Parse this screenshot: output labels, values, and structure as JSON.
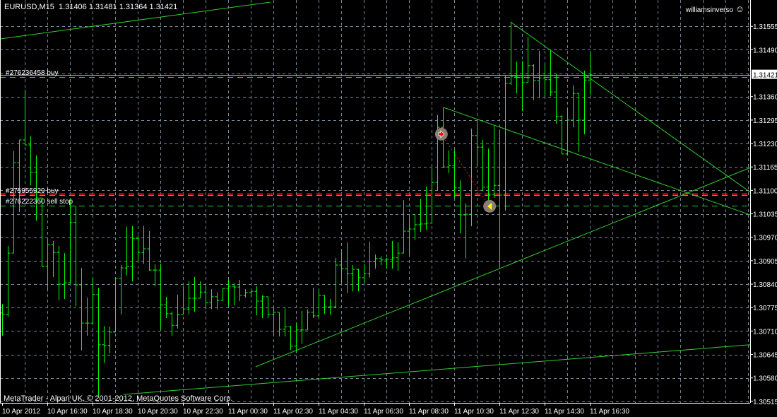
{
  "header": {
    "symbol": "EURUSD,M15",
    "open": "1.31406",
    "high": "1.31481",
    "low": "1.31364",
    "close": "1.31421"
  },
  "user": {
    "name": "williamsinverso",
    "icon": "smiley-icon"
  },
  "footer": {
    "copyright": "MetaTrader - Alpari UK, © 2001-2012, MetaQuotes Software Corp."
  },
  "colors": {
    "background": "#000000",
    "bars": "#00ff00",
    "trendlines": "#32cd32",
    "grid": "#778899",
    "sell_line": "#ff0000",
    "buy_line": "#32cd32",
    "axis": "#ffffff"
  },
  "chart_data": {
    "type": "ohlc",
    "timeframe": "M15",
    "x_start": "2012-04-10 14:30",
    "interval_minutes": 15,
    "ylim": [
      1.30505,
      1.31628
    ],
    "grid": true,
    "current_price": "1.31421",
    "y_ticks": [
      "1.31555",
      "1.31490",
      "1.31360",
      "1.31295",
      "1.31230",
      "1.31165",
      "1.31100",
      "1.31035",
      "1.30970",
      "1.30905",
      "1.30840",
      "1.30775",
      "1.30710",
      "1.30645",
      "1.30580",
      "1.30515"
    ],
    "x_ticks": [
      "10 Apr 2012",
      "10 Apr 16:30",
      "10 Apr 18:30",
      "10 Apr 20:30",
      "10 Apr 22:30",
      "11 Apr 00:30",
      "11 Apr 02:30",
      "11 Apr 04:30",
      "11 Apr 06:30",
      "11 Apr 08:30",
      "11 Apr 10:30",
      "11 Apr 12:30",
      "11 Apr 14:30",
      "11 Apr 16:30"
    ],
    "bars": [
      [
        1.3076,
        1.30785,
        1.30697,
        1.30756
      ],
      [
        1.30756,
        1.30946,
        1.3075,
        1.30926
      ],
      [
        1.30926,
        1.31209,
        1.30926,
        1.31177
      ],
      [
        1.31177,
        1.3124,
        1.3104,
        1.3124
      ],
      [
        1.3124,
        1.31379,
        1.31226,
        1.31226
      ],
      [
        1.31226,
        1.3125,
        1.31114,
        1.3115
      ],
      [
        1.3115,
        1.31197,
        1.31016,
        1.31079
      ],
      [
        1.31079,
        1.31079,
        1.30887,
        1.30889
      ],
      [
        1.30889,
        1.30966,
        1.3082,
        1.3095
      ],
      [
        1.3095,
        1.3096,
        1.3086,
        1.30928
      ],
      [
        1.30928,
        1.30946,
        1.30795,
        1.3084
      ],
      [
        1.3084,
        1.30926,
        1.30799,
        1.30844
      ],
      [
        1.30844,
        1.31079,
        1.30844,
        1.31011
      ],
      [
        1.31011,
        1.31058,
        1.30779,
        1.30838
      ],
      [
        1.30838,
        1.30885,
        1.30656,
        1.30732
      ],
      [
        1.30732,
        1.30803,
        1.30697,
        1.30732
      ],
      [
        1.30732,
        1.30858,
        1.30732,
        1.30811
      ],
      [
        1.30811,
        1.3083,
        1.3053,
        1.30672
      ],
      [
        1.30672,
        1.30724,
        1.30621,
        1.3067
      ],
      [
        1.3067,
        1.30722,
        1.30648,
        1.30707
      ],
      [
        1.30707,
        1.30858,
        1.30707,
        1.30856
      ],
      [
        1.30856,
        1.30893,
        1.30756,
        1.30885
      ],
      [
        1.30885,
        1.30999,
        1.30864,
        1.30889
      ],
      [
        1.30889,
        1.31001,
        1.30848,
        1.30967
      ],
      [
        1.30967,
        1.30975,
        1.30903,
        1.30928
      ],
      [
        1.30928,
        1.31001,
        1.30897,
        1.30938
      ],
      [
        1.30938,
        1.30987,
        1.30877,
        1.30879
      ],
      [
        1.30879,
        1.30895,
        1.30834,
        1.30879
      ],
      [
        1.30879,
        1.30897,
        1.30715,
        1.30783
      ],
      [
        1.30783,
        1.30805,
        1.30746,
        1.30758
      ],
      [
        1.30758,
        1.30764,
        1.30697,
        1.30726
      ],
      [
        1.30726,
        1.30811,
        1.30717,
        1.30756
      ],
      [
        1.30756,
        1.30834,
        1.30756,
        1.30771
      ],
      [
        1.30771,
        1.30848,
        1.30756,
        1.30801
      ],
      [
        1.30801,
        1.3086,
        1.30764,
        1.30801
      ],
      [
        1.30801,
        1.30848,
        1.30801,
        1.30818
      ],
      [
        1.30818,
        1.30836,
        1.3077,
        1.30789
      ],
      [
        1.30789,
        1.30826,
        1.30771,
        1.30805
      ],
      [
        1.30805,
        1.30817,
        1.3077,
        1.30795
      ],
      [
        1.30795,
        1.30828,
        1.30795,
        1.30828
      ],
      [
        1.30828,
        1.30852,
        1.30781,
        1.30834
      ],
      [
        1.30834,
        1.30842,
        1.30781,
        1.30832
      ],
      [
        1.30832,
        1.30852,
        1.30793,
        1.30809
      ],
      [
        1.30809,
        1.30826,
        1.30803,
        1.30817
      ],
      [
        1.30817,
        1.3082,
        1.30803,
        1.3082
      ],
      [
        1.3082,
        1.30834,
        1.30754,
        1.30793
      ],
      [
        1.30793,
        1.30809,
        1.30746,
        1.30805
      ],
      [
        1.30805,
        1.30805,
        1.30746,
        1.30756
      ],
      [
        1.30756,
        1.30777,
        1.30695,
        1.30762
      ],
      [
        1.30762,
        1.30762,
        1.30695,
        1.30715
      ],
      [
        1.30715,
        1.30773,
        1.30695,
        1.30722
      ],
      [
        1.30722,
        1.30724,
        1.30658,
        1.30668
      ],
      [
        1.30668,
        1.30732,
        1.30652,
        1.30713
      ],
      [
        1.30713,
        1.30766,
        1.30675,
        1.30713
      ],
      [
        1.30713,
        1.3077,
        1.30713,
        1.30762
      ],
      [
        1.30762,
        1.3083,
        1.30746,
        1.30752
      ],
      [
        1.30752,
        1.30822,
        1.30748,
        1.30809
      ],
      [
        1.30809,
        1.30809,
        1.30758,
        1.30777
      ],
      [
        1.30777,
        1.30799,
        1.30754,
        1.30777
      ],
      [
        1.30777,
        1.30913,
        1.30773,
        1.30893
      ],
      [
        1.30893,
        1.30932,
        1.30844,
        1.30883
      ],
      [
        1.30883,
        1.30956,
        1.30815,
        1.30869
      ],
      [
        1.30869,
        1.30893,
        1.3082,
        1.30881
      ],
      [
        1.30881,
        1.30883,
        1.3082,
        1.30858
      ],
      [
        1.30858,
        1.30895,
        1.30844,
        1.30869
      ],
      [
        1.30869,
        1.30958,
        1.30858,
        1.30903
      ],
      [
        1.30903,
        1.30922,
        1.30883,
        1.30911
      ],
      [
        1.30911,
        1.30917,
        1.30893,
        1.30907
      ],
      [
        1.30907,
        1.30913,
        1.30883,
        1.30909
      ],
      [
        1.30909,
        1.3096,
        1.30883,
        1.30913
      ],
      [
        1.30913,
        1.30956,
        1.30877,
        1.30926
      ],
      [
        1.30926,
        1.31073,
        1.30926,
        1.30987
      ],
      [
        1.30987,
        1.31034,
        1.30922,
        1.30993
      ],
      [
        1.30993,
        1.31034,
        1.30962,
        1.31005
      ],
      [
        1.31005,
        1.31077,
        1.30985,
        1.31007
      ],
      [
        1.31007,
        1.31111,
        1.30991,
        1.31009
      ],
      [
        1.31009,
        1.31162,
        1.31009,
        1.31122
      ],
      [
        1.31122,
        1.31309,
        1.31099,
        1.31275
      ],
      [
        1.31275,
        1.3133,
        1.31162,
        1.31165
      ],
      [
        1.31165,
        1.31211,
        1.31148,
        1.31169
      ],
      [
        1.31169,
        1.31212,
        1.31079,
        1.31107
      ],
      [
        1.31107,
        1.31128,
        1.30981,
        1.31032
      ],
      [
        1.31032,
        1.31064,
        1.30911,
        1.31034
      ],
      [
        1.31034,
        1.31271,
        1.31001,
        1.31252
      ],
      [
        1.31252,
        1.31295,
        1.31167,
        1.3122
      ],
      [
        1.3122,
        1.3124,
        1.31099,
        1.31109
      ],
      [
        1.31109,
        1.31216,
        1.3106,
        1.31089
      ],
      [
        1.31089,
        1.31279,
        1.31079,
        1.31114
      ],
      [
        1.31114,
        1.31269,
        1.30887,
        1.31087
      ],
      [
        1.31087,
        1.31418,
        1.31044,
        1.31397
      ],
      [
        1.31397,
        1.31567,
        1.31393,
        1.31416
      ],
      [
        1.31416,
        1.31457,
        1.31369,
        1.31414
      ],
      [
        1.31414,
        1.31459,
        1.3132,
        1.31399
      ],
      [
        1.31399,
        1.31526,
        1.31399,
        1.31446
      ],
      [
        1.31446,
        1.3145,
        1.3135,
        1.31405
      ],
      [
        1.31405,
        1.31487,
        1.31356,
        1.31412
      ],
      [
        1.31412,
        1.31448,
        1.31361,
        1.31407
      ],
      [
        1.31407,
        1.31489,
        1.31361,
        1.31373
      ],
      [
        1.31373,
        1.31424,
        1.31285,
        1.31305
      ],
      [
        1.31305,
        1.31309,
        1.31201,
        1.31201
      ],
      [
        1.31201,
        1.3133,
        1.31197,
        1.31295
      ],
      [
        1.31295,
        1.31391,
        1.31275,
        1.31369
      ],
      [
        1.31369,
        1.31369,
        1.31207,
        1.31295
      ],
      [
        1.31295,
        1.31432,
        1.31256,
        1.31406
      ],
      [
        1.31406,
        1.31481,
        1.31364,
        1.31421
      ]
    ],
    "trendlines": [
      {
        "from": {
          "time": "2012-04-10 14:24",
          "price": 1.3152
        },
        "to": {
          "time": "2012-04-11 02:22",
          "price": 1.31622
        }
      },
      {
        "from": {
          "time": "2012-04-10 19:52",
          "price": 1.30534
        },
        "to": {
          "time": "2012-04-11 23:36",
          "price": 1.30672
        }
      },
      {
        "from": {
          "time": "2012-04-11 01:43",
          "price": 1.30611
        },
        "to": {
          "time": "2012-04-11 23:36",
          "price": 1.31163
        }
      },
      {
        "from": {
          "time": "2012-04-11 10:02",
          "price": 1.3133
        },
        "to": {
          "time": "2012-04-11 23:36",
          "price": 1.31032
        }
      },
      {
        "from": {
          "time": "2012-04-11 13:00",
          "price": 1.31567
        },
        "to": {
          "time": "2012-04-11 23:36",
          "price": 1.31095
        }
      }
    ],
    "orders": [
      {
        "label": "#276236458 buy",
        "price": 1.31414,
        "color": "#32cd32"
      },
      {
        "label": "#275955929 buy",
        "price": 1.31087,
        "color": "#32cd32"
      },
      {
        "label": "#276222360 sell stop",
        "price": 1.31058,
        "color": "#32cd32"
      }
    ],
    "stop_line": {
      "price": 1.31091,
      "color": "#ff0000"
    },
    "trade": {
      "entry": {
        "time": "2012-04-11 09:56",
        "price": 1.31256,
        "icon": "buy-arrow-icon"
      },
      "exit": {
        "time": "2012-04-11 12:04",
        "price": 1.31056,
        "icon": "close-arrow-icon"
      }
    }
  }
}
